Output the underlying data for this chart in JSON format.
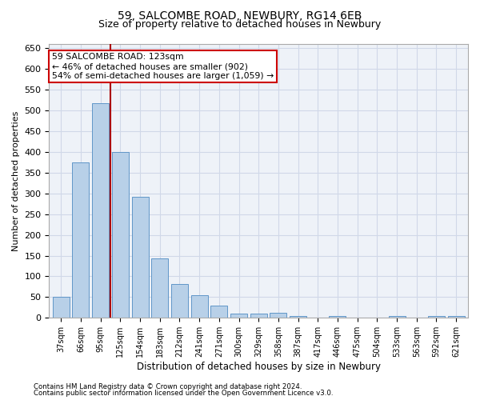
{
  "title1": "59, SALCOMBE ROAD, NEWBURY, RG14 6EB",
  "title2": "Size of property relative to detached houses in Newbury",
  "xlabel": "Distribution of detached houses by size in Newbury",
  "ylabel": "Number of detached properties",
  "categories": [
    "37sqm",
    "66sqm",
    "95sqm",
    "125sqm",
    "154sqm",
    "183sqm",
    "212sqm",
    "241sqm",
    "271sqm",
    "300sqm",
    "329sqm",
    "358sqm",
    "387sqm",
    "417sqm",
    "446sqm",
    "475sqm",
    "504sqm",
    "533sqm",
    "563sqm",
    "592sqm",
    "621sqm"
  ],
  "values": [
    50,
    375,
    517,
    400,
    292,
    143,
    82,
    55,
    30,
    11,
    11,
    12,
    5,
    0,
    5,
    0,
    0,
    5,
    0,
    5,
    5
  ],
  "bar_color": "#b8d0e8",
  "bar_edge_color": "#6096c8",
  "marker_label_line1": "59 SALCOMBE ROAD: 123sqm",
  "marker_label_line2": "← 46% of detached houses are smaller (902)",
  "marker_label_line3": "54% of semi-detached houses are larger (1,059) →",
  "vline_color": "#aa0000",
  "box_edge_color": "#cc0000",
  "ylim": [
    0,
    660
  ],
  "yticks": [
    0,
    50,
    100,
    150,
    200,
    250,
    300,
    350,
    400,
    450,
    500,
    550,
    600,
    650
  ],
  "footnote1": "Contains HM Land Registry data © Crown copyright and database right 2024.",
  "footnote2": "Contains public sector information licensed under the Open Government Licence v3.0.",
  "grid_color": "#d0d8e8",
  "bg_color": "#eef2f8",
  "fig_bg_color": "#ffffff",
  "title1_fontsize": 10,
  "title2_fontsize": 9
}
